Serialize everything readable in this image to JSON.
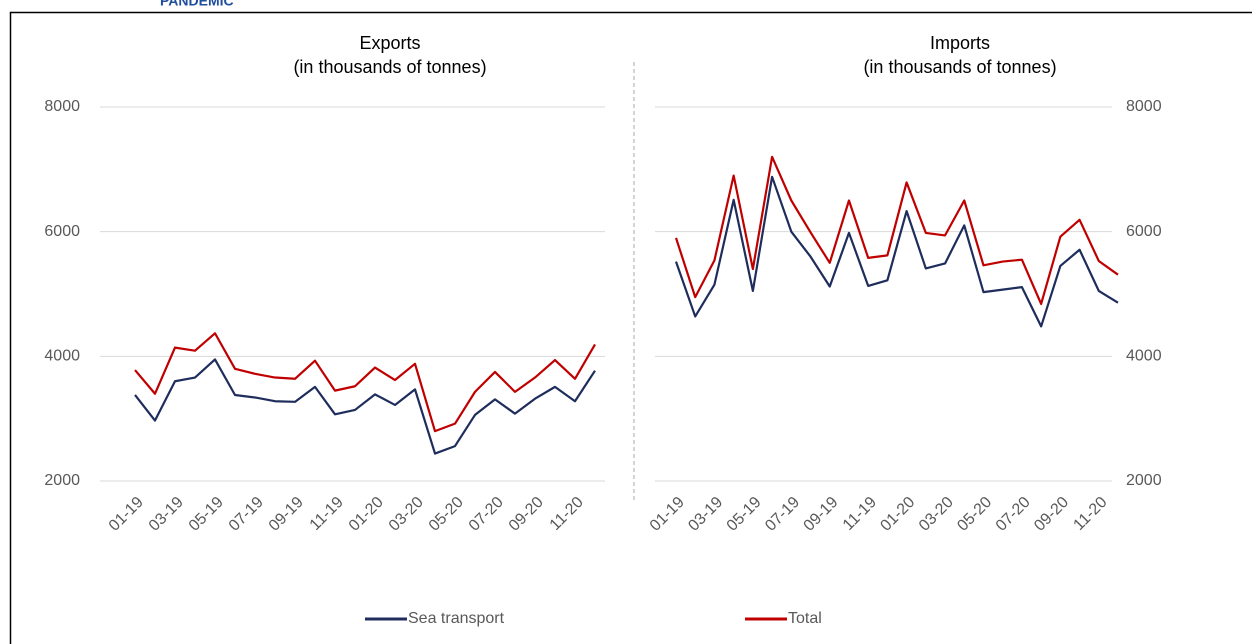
{
  "header": "PANDEMIC",
  "chart_data": [
    {
      "type": "line",
      "title": "Exports",
      "subtitle": "(in thousands of tonnes)",
      "categories": [
        "01-19",
        null,
        "03-19",
        null,
        "05-19",
        null,
        "07-19",
        null,
        "09-19",
        null,
        "11-19",
        null,
        "01-20",
        null,
        "03-20",
        null,
        "05-20",
        null,
        "07-20",
        null,
        "09-20",
        null,
        "11-20",
        null
      ],
      "series": [
        {
          "name": "Sea transport",
          "color": "#1f2d5c",
          "values": [
            3380,
            2970,
            3600,
            3660,
            3950,
            3380,
            3340,
            3280,
            3270,
            3510,
            3070,
            3140,
            3390,
            3220,
            3470,
            2440,
            2560,
            3060,
            3310,
            3080,
            3320,
            3510,
            3280,
            3770
          ]
        },
        {
          "name": "Total",
          "color": "#c00000",
          "values": [
            3780,
            3400,
            4140,
            4090,
            4370,
            3800,
            3720,
            3660,
            3640,
            3930,
            3450,
            3520,
            3820,
            3620,
            3880,
            2800,
            2920,
            3430,
            3750,
            3430,
            3660,
            3940,
            3640,
            4190
          ]
        }
      ],
      "ylim": [
        2000,
        8000
      ],
      "yticks": [
        2000,
        4000,
        6000,
        8000
      ],
      "grid": true
    },
    {
      "type": "line",
      "title": "Imports",
      "subtitle": "(in thousands of tonnes)",
      "categories": [
        "01-19",
        null,
        "03-19",
        null,
        "05-19",
        null,
        "07-19",
        null,
        "09-19",
        null,
        "11-19",
        null,
        "01-20",
        null,
        "03-20",
        null,
        "05-20",
        null,
        "07-20",
        null,
        "09-20",
        null,
        "11-20",
        null
      ],
      "series": [
        {
          "color": "#1f2d5c",
          "values": [
            5520,
            4640,
            5150,
            6510,
            5050,
            6880,
            6000,
            5600,
            5120,
            5980,
            5130,
            5220,
            6330,
            5410,
            5490,
            6100,
            5030,
            5070,
            5110,
            4480,
            5450,
            5710,
            5050,
            4860
          ]
        },
        {
          "color": "#c00000",
          "values": [
            5900,
            4950,
            5540,
            6900,
            5400,
            7200,
            6500,
            5990,
            5500,
            6500,
            5580,
            5620,
            6790,
            5980,
            5940,
            6500,
            5460,
            5520,
            5550,
            4840,
            5920,
            6190,
            5530,
            5310
          ]
        }
      ],
      "ylim": [
        2000,
        8000
      ],
      "yticks": [
        2000,
        4000,
        6000,
        8000
      ],
      "grid": true
    }
  ]
}
